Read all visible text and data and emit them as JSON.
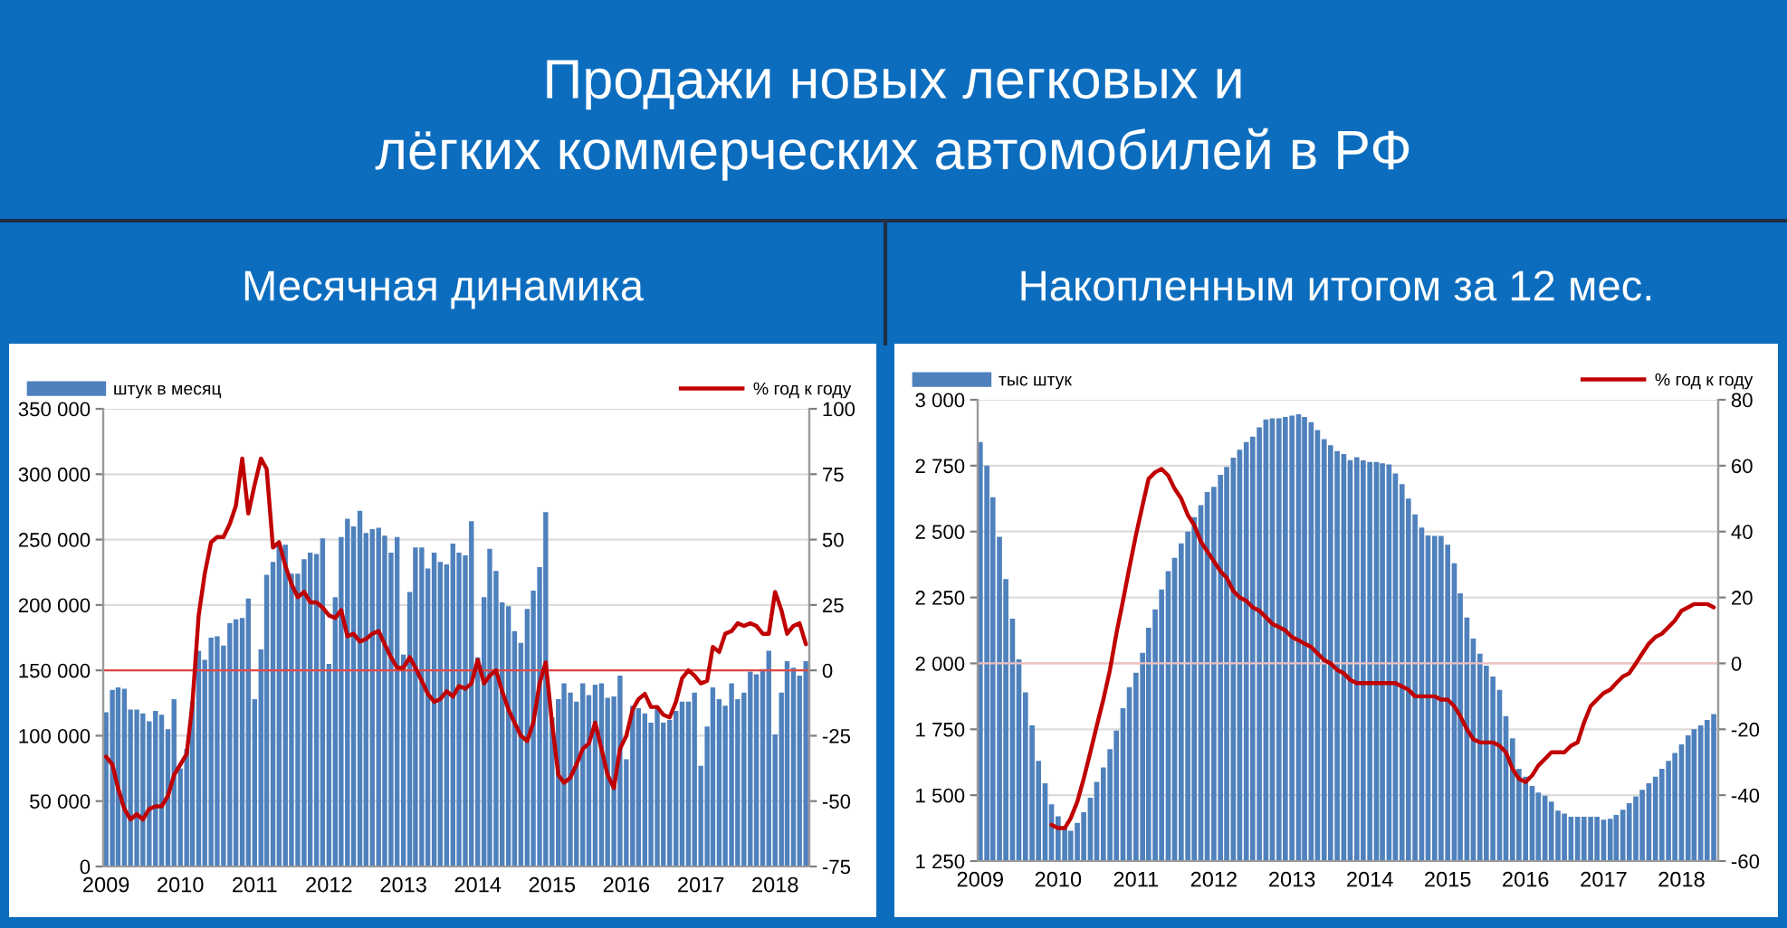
{
  "chart_data": [
    {
      "type": "other",
      "title": "Продажи новых легковых и\nлёгких коммерческих автомобилей в РФ"
    },
    {
      "type": "bar",
      "title": "Месячная динамика",
      "legend": "top",
      "grid": "y",
      "x": [
        "2009-01",
        "2009-02",
        "2009-03",
        "2009-04",
        "2009-05",
        "2009-06",
        "2009-07",
        "2009-08",
        "2009-09",
        "2009-10",
        "2009-11",
        "2009-12",
        "2010-01",
        "2010-02",
        "2010-03",
        "2010-04",
        "2010-05",
        "2010-06",
        "2010-07",
        "2010-08",
        "2010-09",
        "2010-10",
        "2010-11",
        "2010-12",
        "2011-01",
        "2011-02",
        "2011-03",
        "2011-04",
        "2011-05",
        "2011-06",
        "2011-07",
        "2011-08",
        "2011-09",
        "2011-10",
        "2011-11",
        "2011-12",
        "2012-01",
        "2012-02",
        "2012-03",
        "2012-04",
        "2012-05",
        "2012-06",
        "2012-07",
        "2012-08",
        "2012-09",
        "2012-10",
        "2012-11",
        "2012-12",
        "2013-01",
        "2013-02",
        "2013-03",
        "2013-04",
        "2013-05",
        "2013-06",
        "2013-07",
        "2013-08",
        "2013-09",
        "2013-10",
        "2013-11",
        "2013-12",
        "2014-01",
        "2014-02",
        "2014-03",
        "2014-04",
        "2014-05",
        "2014-06",
        "2014-07",
        "2014-08",
        "2014-09",
        "2014-10",
        "2014-11",
        "2014-12",
        "2015-01",
        "2015-02",
        "2015-03",
        "2015-04",
        "2015-05",
        "2015-06",
        "2015-07",
        "2015-08",
        "2015-09",
        "2015-10",
        "2015-11",
        "2015-12",
        "2016-01",
        "2016-02",
        "2016-03",
        "2016-04",
        "2016-05",
        "2016-06",
        "2016-07",
        "2016-08",
        "2016-09",
        "2016-10",
        "2016-11",
        "2016-12",
        "2017-01",
        "2017-02",
        "2017-03",
        "2017-04",
        "2017-05",
        "2017-06",
        "2017-07",
        "2017-08",
        "2017-09",
        "2017-10",
        "2017-11",
        "2017-12",
        "2018-01",
        "2018-02",
        "2018-03",
        "2018-04",
        "2018-05",
        "2018-06"
      ],
      "xlim": [
        "2008-12-18",
        "2018-06-18"
      ],
      "xticks": [
        {
          "value": "2009-01",
          "label": "2009"
        },
        {
          "value": "2010-01",
          "label": "2010"
        },
        {
          "value": "2011-01",
          "label": "2011"
        },
        {
          "value": "2012-01",
          "label": "2012"
        },
        {
          "value": "2013-01",
          "label": "2013"
        },
        {
          "value": "2014-01",
          "label": "2014"
        },
        {
          "value": "2015-01",
          "label": "2015"
        },
        {
          "value": "2016-01",
          "label": "2016"
        },
        {
          "value": "2017-01",
          "label": "2017"
        },
        {
          "value": "2018-01",
          "label": "2018"
        }
      ],
      "ylim": [
        0,
        350000
      ],
      "yticks": [
        0,
        {
          "value": 50000,
          "label": "50 000"
        },
        {
          "value": 100000,
          "label": "100 000"
        },
        {
          "value": 150000,
          "label": "150 000"
        },
        {
          "value": 200000,
          "label": "200 000"
        },
        {
          "value": 250000,
          "label": "250 000"
        },
        {
          "value": 300000,
          "label": "300 000"
        },
        {
          "value": 350000,
          "label": "350 000"
        }
      ],
      "y2lim": [
        -75,
        100
      ],
      "y2ticks": [
        -75,
        -50,
        -25,
        0,
        25,
        50,
        75,
        100
      ],
      "ref_lines": [
        {
          "axis": "y2",
          "value": 0,
          "color": "#e04848"
        }
      ],
      "series": [
        {
          "name": "штук в месяц",
          "type": "bar",
          "color": "#4f81bd",
          "values": [
            118000,
            135000,
            137000,
            136000,
            120000,
            120000,
            117000,
            111000,
            119000,
            116000,
            105000,
            128000,
            75000,
            90000,
            126000,
            165000,
            158000,
            175000,
            176000,
            169000,
            186000,
            189000,
            190000,
            205000,
            128000,
            166000,
            223000,
            233000,
            246000,
            246000,
            224000,
            224000,
            235000,
            240000,
            239000,
            251000,
            155000,
            206000,
            252000,
            266000,
            260000,
            272000,
            255000,
            258000,
            259000,
            253000,
            240000,
            252000,
            162000,
            210000,
            244000,
            244000,
            228000,
            240000,
            233000,
            231000,
            247000,
            240000,
            238000,
            264000,
            160000,
            206000,
            243000,
            226000,
            202000,
            199000,
            180000,
            171000,
            197000,
            211000,
            229000,
            271000,
            114000,
            128000,
            140000,
            133000,
            126000,
            140000,
            131000,
            139000,
            140000,
            129000,
            130000,
            146000,
            82000,
            123000,
            121000,
            117000,
            110000,
            121000,
            110000,
            112000,
            119000,
            126000,
            126000,
            133000,
            77000,
            107000,
            137000,
            128000,
            123000,
            140000,
            128000,
            133000,
            149000,
            147000,
            151000,
            165000,
            101000,
            133000,
            157000,
            152000,
            146000,
            157000
          ]
        },
        {
          "name": "% год к году",
          "type": "line",
          "axis": "y2",
          "color": "#c00000",
          "values": [
            -33,
            -36,
            -45,
            -53,
            -57,
            -55,
            -57,
            -53,
            -52,
            -52,
            -48,
            -40,
            -36,
            -32,
            -13,
            21,
            37,
            49,
            51,
            51,
            56,
            63,
            81,
            60,
            71,
            81,
            77,
            47,
            49,
            40,
            33,
            28,
            30,
            26,
            26,
            24,
            21,
            20,
            23,
            13,
            14,
            11,
            12,
            14,
            15,
            10,
            5,
            1,
            1,
            5,
            1,
            -4,
            -9,
            -12,
            -11,
            -8,
            -10,
            -6,
            -7,
            -5,
            4,
            -5,
            -2,
            0,
            -8,
            -15,
            -20,
            -25,
            -27,
            -20,
            -5,
            3,
            -20,
            -40,
            -43,
            -41,
            -36,
            -30,
            -28,
            -20,
            -30,
            -40,
            -45,
            -30,
            -25,
            -15,
            -11,
            -9,
            -14,
            -14,
            -17,
            -18,
            -12,
            -3,
            0,
            -2,
            -5,
            -4,
            9,
            7,
            14,
            15,
            18,
            17,
            18,
            17,
            14,
            14,
            30,
            23,
            14,
            17,
            18,
            10
          ]
        }
      ]
    },
    {
      "type": "bar",
      "title": "Накопленным итогом за 12 мес.",
      "legend": "top",
      "grid": "y",
      "x": [
        "2009-01",
        "2009-02",
        "2009-03",
        "2009-04",
        "2009-05",
        "2009-06",
        "2009-07",
        "2009-08",
        "2009-09",
        "2009-10",
        "2009-11",
        "2009-12",
        "2010-01",
        "2010-02",
        "2010-03",
        "2010-04",
        "2010-05",
        "2010-06",
        "2010-07",
        "2010-08",
        "2010-09",
        "2010-10",
        "2010-11",
        "2010-12",
        "2011-01",
        "2011-02",
        "2011-03",
        "2011-04",
        "2011-05",
        "2011-06",
        "2011-07",
        "2011-08",
        "2011-09",
        "2011-10",
        "2011-11",
        "2011-12",
        "2012-01",
        "2012-02",
        "2012-03",
        "2012-04",
        "2012-05",
        "2012-06",
        "2012-07",
        "2012-08",
        "2012-09",
        "2012-10",
        "2012-11",
        "2012-12",
        "2013-01",
        "2013-02",
        "2013-03",
        "2013-04",
        "2013-05",
        "2013-06",
        "2013-07",
        "2013-08",
        "2013-09",
        "2013-10",
        "2013-11",
        "2013-12",
        "2014-01",
        "2014-02",
        "2014-03",
        "2014-04",
        "2014-05",
        "2014-06",
        "2014-07",
        "2014-08",
        "2014-09",
        "2014-10",
        "2014-11",
        "2014-12",
        "2015-01",
        "2015-02",
        "2015-03",
        "2015-04",
        "2015-05",
        "2015-06",
        "2015-07",
        "2015-08",
        "2015-09",
        "2015-10",
        "2015-11",
        "2015-12",
        "2016-01",
        "2016-02",
        "2016-03",
        "2016-04",
        "2016-05",
        "2016-06",
        "2016-07",
        "2016-08",
        "2016-09",
        "2016-10",
        "2016-11",
        "2016-12",
        "2017-01",
        "2017-02",
        "2017-03",
        "2017-04",
        "2017-05",
        "2017-06",
        "2017-07",
        "2017-08",
        "2017-09",
        "2017-10",
        "2017-11",
        "2017-12",
        "2018-01",
        "2018-02",
        "2018-03",
        "2018-04",
        "2018-05",
        "2018-06"
      ],
      "xlim": [
        "2008-12-20",
        "2018-06-22"
      ],
      "xticks": [
        {
          "value": "2009-01",
          "label": "2009"
        },
        {
          "value": "2010-01",
          "label": "2010"
        },
        {
          "value": "2011-01",
          "label": "2011"
        },
        {
          "value": "2012-01",
          "label": "2012"
        },
        {
          "value": "2013-01",
          "label": "2013"
        },
        {
          "value": "2014-01",
          "label": "2014"
        },
        {
          "value": "2015-01",
          "label": "2015"
        },
        {
          "value": "2016-01",
          "label": "2016"
        },
        {
          "value": "2017-01",
          "label": "2017"
        },
        {
          "value": "2018-01",
          "label": "2018"
        }
      ],
      "ylim": [
        1250,
        3000
      ],
      "yticks": [
        {
          "value": 1250,
          "label": "1 250"
        },
        {
          "value": 1500,
          "label": "1 500"
        },
        {
          "value": 1750,
          "label": "1 750"
        },
        {
          "value": 2000,
          "label": "2 000"
        },
        {
          "value": 2250,
          "label": "2 250"
        },
        {
          "value": 2500,
          "label": "2 500"
        },
        {
          "value": 2750,
          "label": "2 750"
        },
        {
          "value": 3000,
          "label": "3 000"
        }
      ],
      "y2lim": [
        -60,
        80
      ],
      "y2ticks": [
        -60,
        -40,
        -20,
        0,
        20,
        40,
        60,
        80
      ],
      "ref_lines": [
        {
          "axis": "y2",
          "value": 0,
          "color": "#f0c0c0"
        }
      ],
      "series": [
        {
          "name": "тыс штук",
          "type": "bar",
          "color": "#4f81bd",
          "values": [
            2840,
            2750,
            2630,
            2480,
            2320,
            2170,
            2015,
            1890,
            1765,
            1630,
            1545,
            1465,
            1420,
            1380,
            1365,
            1395,
            1435,
            1490,
            1550,
            1605,
            1675,
            1745,
            1830,
            1910,
            1965,
            2040,
            2135,
            2205,
            2280,
            2350,
            2400,
            2455,
            2500,
            2555,
            2600,
            2650,
            2670,
            2715,
            2745,
            2780,
            2810,
            2840,
            2860,
            2895,
            2925,
            2930,
            2930,
            2935,
            2940,
            2945,
            2935,
            2915,
            2885,
            2851,
            2828,
            2805,
            2794,
            2771,
            2782,
            2770,
            2764,
            2764,
            2759,
            2755,
            2720,
            2680,
            2625,
            2565,
            2515,
            2485,
            2484,
            2484,
            2450,
            2380,
            2266,
            2174,
            2094,
            2037,
            1991,
            1950,
            1899,
            1800,
            1716,
            1600,
            1570,
            1535,
            1510,
            1498,
            1476,
            1441,
            1430,
            1418,
            1418,
            1418,
            1418,
            1418,
            1407,
            1410,
            1425,
            1445,
            1470,
            1495,
            1520,
            1545,
            1570,
            1600,
            1630,
            1660,
            1693,
            1727,
            1750,
            1765,
            1785,
            1808
          ]
        },
        {
          "name": "% год к году",
          "type": "line",
          "axis": "y2",
          "color": "#c00000",
          "values": [
            null,
            null,
            null,
            null,
            null,
            null,
            null,
            null,
            null,
            null,
            null,
            -49,
            -50,
            -50,
            -47,
            -42,
            -35,
            -27,
            -19,
            -11,
            -2,
            9,
            19,
            29,
            39,
            48,
            56,
            58,
            59,
            57,
            53,
            50,
            45,
            42,
            37,
            34,
            31,
            28,
            26,
            22,
            20,
            19,
            17,
            16,
            14,
            12,
            11,
            10,
            8,
            7,
            6,
            5,
            3,
            1,
            0,
            -2,
            -3,
            -5,
            -6,
            -6,
            -6,
            -6,
            -6,
            -6,
            -6,
            -7,
            -8,
            -10,
            -10,
            -10,
            -10,
            -11,
            -11,
            -13,
            -16,
            -20,
            -23,
            -24,
            -24,
            -24,
            -25,
            -27,
            -32,
            -35,
            -36,
            -34,
            -31,
            -29,
            -27,
            -27,
            -27,
            -25,
            -24,
            -18,
            -13,
            -11,
            -9,
            -8,
            -6,
            -4,
            -3,
            0,
            3,
            6,
            8,
            9,
            11,
            13,
            16,
            17,
            18,
            18,
            18,
            17
          ]
        }
      ]
    }
  ]
}
